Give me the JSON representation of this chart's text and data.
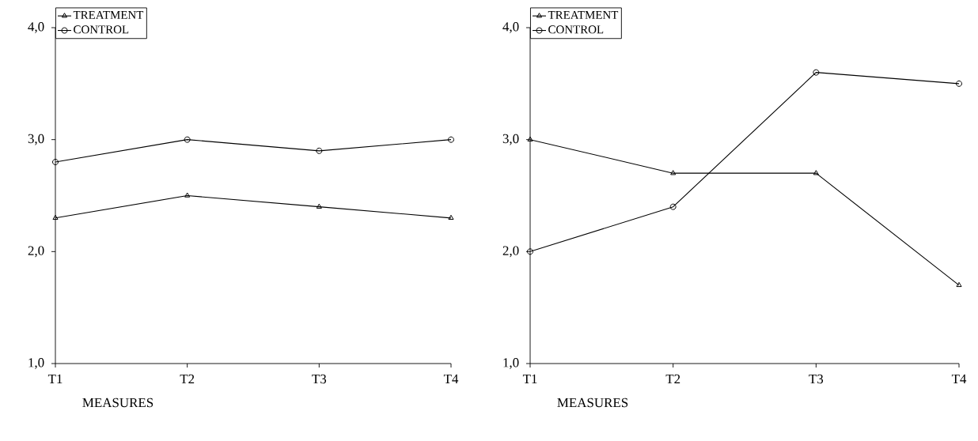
{
  "chart_data": [
    {
      "type": "line",
      "xlabel": "MEASURES",
      "categories": [
        "T1",
        "T2",
        "T3",
        "T4"
      ],
      "series": [
        {
          "name": "TREATMENT",
          "color": "#000000",
          "marker": "triangle",
          "values": [
            2.3,
            2.5,
            2.4,
            2.3
          ]
        },
        {
          "name": "CONTROL",
          "color": "#000000",
          "marker": "circle",
          "values": [
            2.8,
            3.0,
            2.9,
            3.0
          ]
        }
      ],
      "ylim": [
        1,
        4
      ],
      "yticks": [
        {
          "value": 1,
          "label": "1,0"
        },
        {
          "value": 2,
          "label": "2,0"
        },
        {
          "value": 3,
          "label": "3,0"
        },
        {
          "value": 4,
          "label": "4,0"
        }
      ],
      "grid": false,
      "legend": "top left",
      "line_style": "solid"
    },
    {
      "type": "line",
      "xlabel": "MEASURES",
      "categories": [
        "T1",
        "T2",
        "T3",
        "T4"
      ],
      "series": [
        {
          "name": "TREATMENT",
          "color": "#000000",
          "marker": "triangle",
          "values": [
            3.0,
            2.7,
            2.7,
            1.7
          ]
        },
        {
          "name": "CONTROL",
          "color": "#000000",
          "marker": "circle",
          "values": [
            2.0,
            2.4,
            3.6,
            3.5
          ]
        }
      ],
      "ylim": [
        1,
        4
      ],
      "yticks": [
        {
          "value": 1,
          "label": "1,0"
        },
        {
          "value": 2,
          "label": "2,0"
        },
        {
          "value": 3,
          "label": "3,0"
        },
        {
          "value": 4,
          "label": "4,0"
        }
      ],
      "grid": false,
      "legend": "top left",
      "line_style": "solid"
    }
  ]
}
